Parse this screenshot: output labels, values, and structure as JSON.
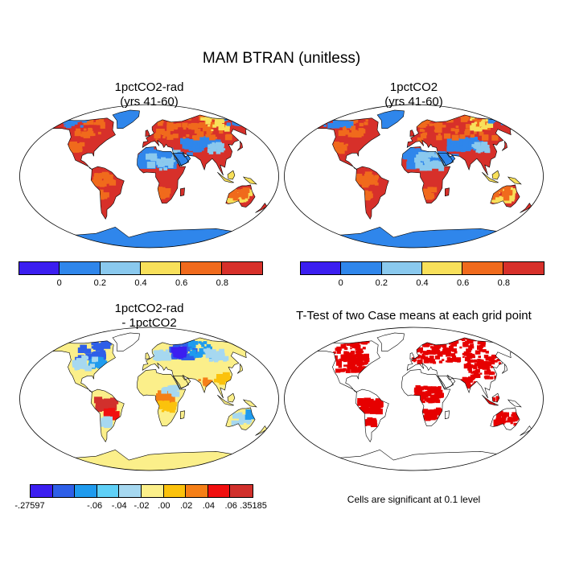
{
  "title": "MAM BTRAN (unitless)",
  "panels": {
    "top_left": {
      "title_line1": "1pctCO2-rad",
      "title_line2": "(yrs 41-60)"
    },
    "top_right": {
      "title_line1": "1pctCO2",
      "title_line2": "(yrs 41-60)"
    },
    "bottom_left": {
      "title_line1": "1pctCO2-rad",
      "title_line2": "- 1pctCO2"
    },
    "bottom_right": {
      "title": "T-Test of two Case means at each grid point",
      "note": "Cells are significant at 0.1 level"
    }
  },
  "legend_absolute": {
    "colors": [
      "#3b1ef0",
      "#2f86eb",
      "#8ac9ee",
      "#f8e05a",
      "#f06a1c",
      "#d7302a"
    ],
    "labels": [
      "0",
      "0.2",
      "0.4",
      "0.6",
      "0.8"
    ]
  },
  "legend_diff": {
    "colors": [
      "#3b1ef0",
      "#2e5fe8",
      "#1f9bee",
      "#5fd0f7",
      "#a6d8f0",
      "#fbef8a",
      "#fbc20c",
      "#f57f17",
      "#f10f0f",
      "#d1302c"
    ],
    "labels": [
      "-.27597",
      "-.06",
      "-.04",
      "-.02",
      ".00",
      ".02",
      ".04",
      ".06",
      ".35185"
    ]
  },
  "colors": {
    "land_high": "#d7302a",
    "land_mid_high": "#f06a1c",
    "land_mid": "#f8e05a",
    "land_low": "#2f86eb",
    "diff_neutral": "#fbef8a",
    "diff_neg": "#2e5fe8",
    "sig": "#e60000"
  }
}
